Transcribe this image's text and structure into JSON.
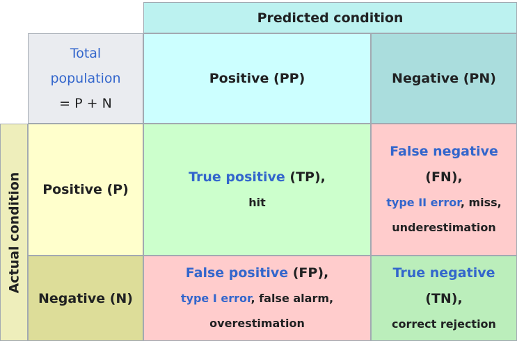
{
  "header": {
    "predicted_condition": "Predicted condition",
    "actual_condition": "Actual condition"
  },
  "total_population": {
    "line1": "Total",
    "line2": "population",
    "line3": "= P + N"
  },
  "predicted": {
    "positive": "Positive (PP)",
    "negative": "Negative (PN)"
  },
  "actual": {
    "positive": "Positive (P)",
    "negative": "Negative (N)"
  },
  "tp": {
    "term": "True positive",
    "abbr": " (TP),",
    "desc": "hit"
  },
  "fn": {
    "term": "False negative",
    "abbr": "(FN),",
    "alt_term": "type II error",
    "alt_rest": ", miss,",
    "desc2": "underestimation"
  },
  "fp": {
    "term": "False positive",
    "abbr": " (FP),",
    "alt_term": "type I error",
    "alt_rest": ", false alarm,",
    "desc2": "overestimation"
  },
  "tn": {
    "term": "True negative",
    "abbr": "(TN),",
    "desc": "correct rejection"
  }
}
